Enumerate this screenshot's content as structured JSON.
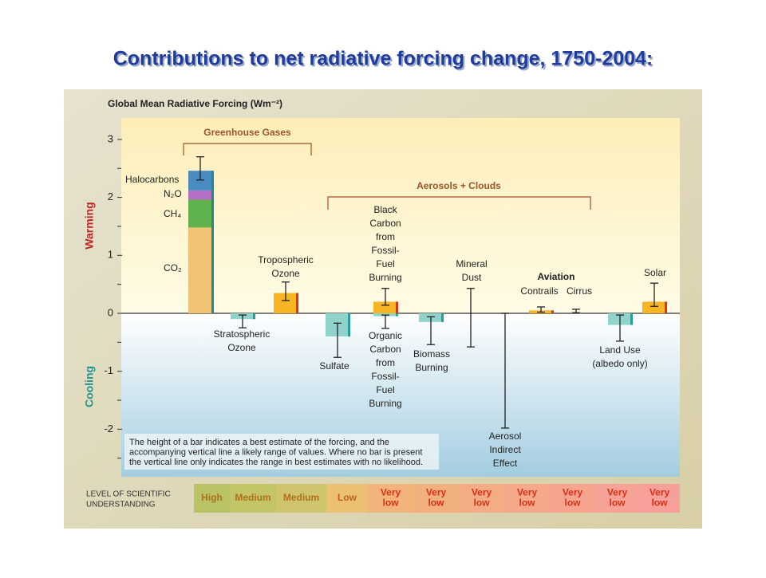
{
  "title": "Contributions to net radiative forcing change, 1750-2004:",
  "chart_data": {
    "type": "bar",
    "ylabel": "Global Mean Radiative Forcing (Wm⁻²)",
    "ylim": [
      -2.82,
      3.37
    ],
    "yticks": [
      -2,
      -1,
      0,
      1,
      2,
      3
    ],
    "minor_yticks": [
      -2.5,
      -1.5,
      -0.5,
      0.5,
      1.5,
      2.5
    ],
    "warming_label": "Warming",
    "cooling_label": "Cooling",
    "groups": [
      "Greenhouse Gases",
      "Aerosols + Clouds"
    ],
    "aviation_label": "Aviation",
    "stack": {
      "series": [
        {
          "name": "CO₂",
          "color": "#f0c274",
          "value": 1.48
        },
        {
          "name": "CH₄",
          "color": "#5fb24c",
          "value": 0.48
        },
        {
          "name": "N₂O",
          "color": "#b26fc4",
          "value": 0.16
        },
        {
          "name": "Halocarbons",
          "color": "#4a8cc0",
          "value": 0.34
        }
      ],
      "range": [
        2.3,
        2.7
      ]
    },
    "bars": [
      {
        "label": [
          "Stratospheric",
          "Ozone"
        ],
        "value": -0.1,
        "range": [
          -0.25,
          -0.03
        ],
        "color": "#8fd3cc"
      },
      {
        "label": [
          "Tropospheric",
          "Ozone"
        ],
        "value": 0.35,
        "range": [
          0.22,
          0.54
        ],
        "color": "#f7b524"
      },
      {
        "label": [
          "Sulfate"
        ],
        "value": -0.4,
        "range": [
          -0.76,
          -0.17
        ],
        "color": "#8fd3cc"
      },
      {
        "label": [
          "Black",
          "Carbon",
          "from",
          "Fossil-",
          "Fuel",
          "Burning"
        ],
        "value": 0.2,
        "range": [
          0.14,
          0.43
        ],
        "color": "#f7b524"
      },
      {
        "label": [
          "Organic",
          "Carbon",
          "from",
          "Fossil-",
          "Fuel",
          "Burning"
        ],
        "value": -0.05,
        "range": [
          -0.26,
          -0.03
        ],
        "color": "#8fd3cc"
      },
      {
        "label": [
          "Biomass",
          "Burning"
        ],
        "value": -0.15,
        "range": [
          -0.54,
          -0.06
        ],
        "color": "#8fd3cc"
      },
      {
        "label": [
          "Mineral",
          "Dust"
        ],
        "value": null,
        "range": [
          -0.58,
          0.43
        ],
        "color": "#8fd3cc"
      },
      {
        "label": [
          "Aerosol",
          "Indirect",
          "Effect"
        ],
        "value": null,
        "range": [
          -1.98,
          0
        ],
        "color": "#8fd3cc"
      },
      {
        "label": [
          "Contrails"
        ],
        "value": 0.05,
        "range": [
          0.02,
          0.11
        ],
        "color": "#f7b524"
      },
      {
        "label": [
          "Cirrus"
        ],
        "value": null,
        "range": [
          0.01,
          0.07
        ],
        "color": "#f7b524"
      },
      {
        "label": [
          "Land Use",
          "(albedo only)"
        ],
        "value": -0.2,
        "range": [
          -0.48,
          -0.03
        ],
        "color": "#8fd3cc"
      },
      {
        "label": [
          "Solar"
        ],
        "value": 0.2,
        "range": [
          0.12,
          0.52
        ],
        "color": "#f7b524"
      }
    ],
    "note": [
      "The height of a bar indicates a best estimate of the forcing, and the",
      "accompanying vertical line a likely range of values.  Where no bar is present",
      "the vertical line only indicates the range in best estimates with no likelihood."
    ],
    "losu": {
      "label": [
        "LEVEL  OF SCIENTIFIC",
        "UNDERSTANDING"
      ],
      "levels": [
        {
          "label": [
            "High"
          ],
          "color": "#b9c264"
        },
        {
          "label": [
            "Medium"
          ],
          "color": "#c4c468"
        },
        {
          "label": [
            "Medium"
          ],
          "color": "#cfc56e"
        },
        {
          "label": [
            "Low"
          ],
          "color": "#ecc072"
        },
        {
          "label": [
            "Very",
            "low"
          ],
          "color": "#f2b47a"
        },
        {
          "label": [
            "Very",
            "low"
          ],
          "color": "#f2b07e"
        },
        {
          "label": [
            "Very",
            "low"
          ],
          "color": "#f4ac84"
        },
        {
          "label": [
            "Very",
            "low"
          ],
          "color": "#f5a88a"
        },
        {
          "label": [
            "Very",
            "low"
          ],
          "color": "#f6a490"
        },
        {
          "label": [
            "Very",
            "low"
          ],
          "color": "#f6a296"
        },
        {
          "label": [
            "Very",
            "low"
          ],
          "color": "#f7a09a"
        }
      ]
    }
  }
}
